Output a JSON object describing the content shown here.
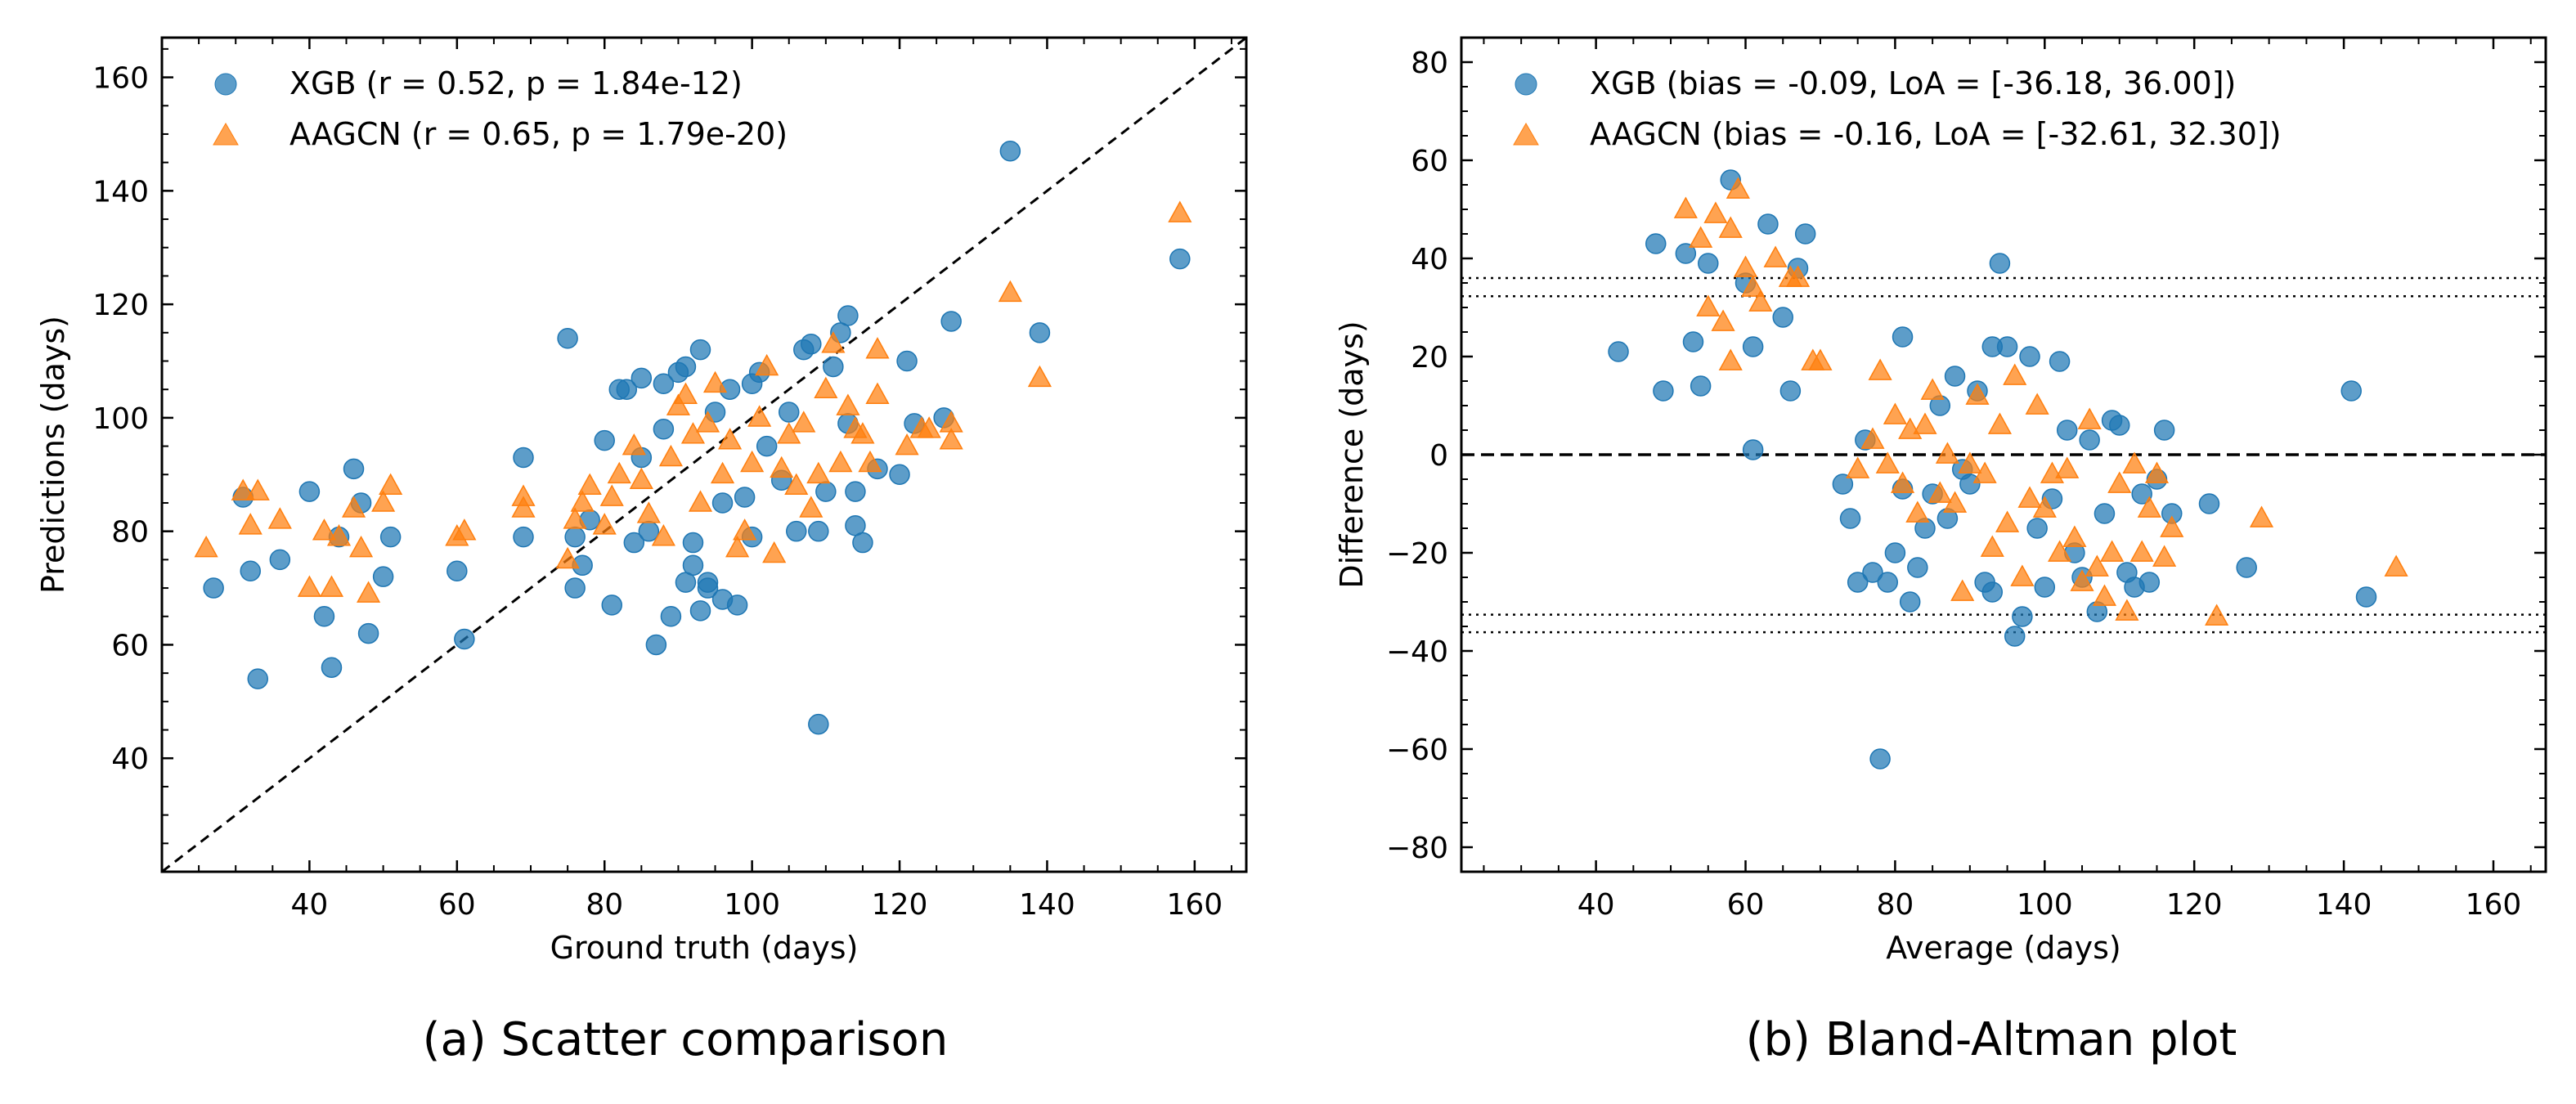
{
  "colors": {
    "xgb": "#1f77b4",
    "aagcn": "#ff7f0e",
    "axis": "#000000"
  },
  "figure": {
    "caption_a": "(a) Scatter comparison",
    "caption_b": "(b) Bland-Altman plot"
  },
  "chart_data": [
    {
      "type": "scatter",
      "xlabel": "Ground truth (days)",
      "ylabel": "Predictions (days)",
      "xlim": [
        20,
        167
      ],
      "ylim": [
        20,
        167
      ],
      "xticks": [
        "40",
        "60",
        "80",
        "100",
        "120",
        "140",
        "160"
      ],
      "yticks": [
        "40",
        "60",
        "80",
        "100",
        "120",
        "140",
        "160"
      ],
      "legend_position": "top-left",
      "reference_line": "identity (y = x), dashed",
      "series": [
        {
          "name": "XGB (r = 0.52, p = 1.84e-12)",
          "marker": "circle",
          "points": [
            [
              27,
              70
            ],
            [
              31,
              86
            ],
            [
              32,
              73
            ],
            [
              33,
              54
            ],
            [
              36,
              75
            ],
            [
              40,
              87
            ],
            [
              42,
              65
            ],
            [
              43,
              56
            ],
            [
              44,
              79
            ],
            [
              46,
              91
            ],
            [
              47,
              85
            ],
            [
              48,
              62
            ],
            [
              50,
              72
            ],
            [
              51,
              79
            ],
            [
              60,
              73
            ],
            [
              61,
              61
            ],
            [
              69,
              79
            ],
            [
              69,
              93
            ],
            [
              75,
              114
            ],
            [
              76,
              70
            ],
            [
              76,
              79
            ],
            [
              77,
              74
            ],
            [
              78,
              82
            ],
            [
              80,
              96
            ],
            [
              81,
              67
            ],
            [
              82,
              105
            ],
            [
              83,
              105
            ],
            [
              84,
              78
            ],
            [
              85,
              93
            ],
            [
              85,
              107
            ],
            [
              86,
              80
            ],
            [
              87,
              60
            ],
            [
              88,
              106
            ],
            [
              88,
              98
            ],
            [
              89,
              65
            ],
            [
              90,
              108
            ],
            [
              91,
              109
            ],
            [
              91,
              71
            ],
            [
              92,
              74
            ],
            [
              92,
              78
            ],
            [
              93,
              112
            ],
            [
              93,
              66
            ],
            [
              94,
              71
            ],
            [
              94,
              70
            ],
            [
              95,
              101
            ],
            [
              96,
              85
            ],
            [
              96,
              68
            ],
            [
              97,
              105
            ],
            [
              98,
              67
            ],
            [
              99,
              86
            ],
            [
              100,
              79
            ],
            [
              100,
              106
            ],
            [
              101,
              108
            ],
            [
              102,
              95
            ],
            [
              104,
              89
            ],
            [
              105,
              101
            ],
            [
              106,
              80
            ],
            [
              107,
              112
            ],
            [
              108,
              113
            ],
            [
              109,
              46
            ],
            [
              109,
              80
            ],
            [
              110,
              87
            ],
            [
              111,
              109
            ],
            [
              112,
              115
            ],
            [
              113,
              99
            ],
            [
              113,
              118
            ],
            [
              114,
              87
            ],
            [
              114,
              81
            ],
            [
              115,
              78
            ],
            [
              117,
              91
            ],
            [
              120,
              90
            ],
            [
              121,
              110
            ],
            [
              122,
              99
            ],
            [
              126,
              100
            ],
            [
              127,
              117
            ],
            [
              135,
              147
            ],
            [
              139,
              115
            ],
            [
              158,
              128
            ]
          ]
        },
        {
          "name": "AAGCN (r = 0.65, p = 1.79e-20)",
          "marker": "triangle",
          "points": [
            [
              26,
              77
            ],
            [
              31,
              87
            ],
            [
              32,
              81
            ],
            [
              33,
              87
            ],
            [
              36,
              82
            ],
            [
              40,
              70
            ],
            [
              42,
              80
            ],
            [
              43,
              70
            ],
            [
              44,
              79
            ],
            [
              46,
              84
            ],
            [
              47,
              77
            ],
            [
              48,
              69
            ],
            [
              50,
              85
            ],
            [
              51,
              88
            ],
            [
              60,
              79
            ],
            [
              61,
              80
            ],
            [
              69,
              84
            ],
            [
              69,
              86
            ],
            [
              75,
              75
            ],
            [
              76,
              82
            ],
            [
              77,
              85
            ],
            [
              78,
              88
            ],
            [
              80,
              81
            ],
            [
              81,
              86
            ],
            [
              82,
              90
            ],
            [
              84,
              95
            ],
            [
              85,
              89
            ],
            [
              86,
              83
            ],
            [
              88,
              79
            ],
            [
              89,
              93
            ],
            [
              90,
              102
            ],
            [
              91,
              104
            ],
            [
              92,
              97
            ],
            [
              93,
              85
            ],
            [
              94,
              99
            ],
            [
              95,
              106
            ],
            [
              96,
              90
            ],
            [
              97,
              96
            ],
            [
              98,
              77
            ],
            [
              99,
              80
            ],
            [
              100,
              92
            ],
            [
              101,
              100
            ],
            [
              102,
              109
            ],
            [
              103,
              76
            ],
            [
              104,
              91
            ],
            [
              105,
              97
            ],
            [
              106,
              88
            ],
            [
              107,
              99
            ],
            [
              108,
              84
            ],
            [
              109,
              90
            ],
            [
              110,
              105
            ],
            [
              111,
              113
            ],
            [
              112,
              92
            ],
            [
              113,
              102
            ],
            [
              114,
              98
            ],
            [
              115,
              97
            ],
            [
              116,
              92
            ],
            [
              117,
              104
            ],
            [
              117,
              112
            ],
            [
              121,
              95
            ],
            [
              123,
              98
            ],
            [
              124,
              98
            ],
            [
              127,
              96
            ],
            [
              127,
              99
            ],
            [
              135,
              122
            ],
            [
              139,
              107
            ],
            [
              158,
              136
            ]
          ]
        }
      ]
    },
    {
      "type": "scatter",
      "xlabel": "Average (days)",
      "ylabel": "Difference (days)",
      "xlim": [
        22,
        167
      ],
      "ylim": [
        -85,
        85
      ],
      "xticks": [
        "40",
        "60",
        "80",
        "100",
        "120",
        "140",
        "160"
      ],
      "yticks": [
        "−80",
        "−60",
        "−40",
        "−20",
        "0",
        "20",
        "40",
        "60",
        "80"
      ],
      "legend_position": "top-left",
      "bias_line": "y = 0, dashed",
      "limits_of_agreement": [
        -36.18,
        36.0,
        -32.61,
        32.3
      ],
      "series": [
        {
          "name": "XGB (bias = -0.09, LoA = [-36.18, 36.00])",
          "marker": "circle",
          "points": [
            [
              43,
              21
            ],
            [
              48,
              43
            ],
            [
              49,
              13
            ],
            [
              52,
              41
            ],
            [
              53,
              23
            ],
            [
              54,
              14
            ],
            [
              55,
              39
            ],
            [
              58,
              56
            ],
            [
              60,
              35
            ],
            [
              61,
              22
            ],
            [
              61,
              1
            ],
            [
              63,
              47
            ],
            [
              65,
              28
            ],
            [
              66,
              13
            ],
            [
              67,
              38
            ],
            [
              68,
              45
            ],
            [
              73,
              -6
            ],
            [
              74,
              -13
            ],
            [
              75,
              -26
            ],
            [
              76,
              3
            ],
            [
              77,
              -24
            ],
            [
              78,
              -62
            ],
            [
              79,
              -26
            ],
            [
              80,
              -20
            ],
            [
              81,
              -7
            ],
            [
              81,
              24
            ],
            [
              82,
              -30
            ],
            [
              83,
              -23
            ],
            [
              84,
              -15
            ],
            [
              85,
              -8
            ],
            [
              86,
              10
            ],
            [
              87,
              -13
            ],
            [
              88,
              16
            ],
            [
              89,
              -3
            ],
            [
              90,
              -6
            ],
            [
              91,
              13
            ],
            [
              92,
              -26
            ],
            [
              93,
              -28
            ],
            [
              93,
              22
            ],
            [
              94,
              39
            ],
            [
              95,
              22
            ],
            [
              96,
              -37
            ],
            [
              97,
              -33
            ],
            [
              98,
              20
            ],
            [
              99,
              -15
            ],
            [
              100,
              -27
            ],
            [
              101,
              -9
            ],
            [
              102,
              19
            ],
            [
              103,
              5
            ],
            [
              104,
              -20
            ],
            [
              105,
              -25
            ],
            [
              106,
              3
            ],
            [
              107,
              -32
            ],
            [
              108,
              -12
            ],
            [
              109,
              7
            ],
            [
              110,
              6
            ],
            [
              111,
              -24
            ],
            [
              112,
              -27
            ],
            [
              113,
              -8
            ],
            [
              114,
              -26
            ],
            [
              115,
              -5
            ],
            [
              116,
              5
            ],
            [
              117,
              -12
            ],
            [
              122,
              -10
            ],
            [
              127,
              -23
            ],
            [
              141,
              13
            ],
            [
              143,
              -29
            ]
          ]
        },
        {
          "name": "AAGCN (bias = -0.16, LoA = [-32.61, 32.30])",
          "marker": "triangle",
          "points": [
            [
              52,
              50
            ],
            [
              54,
              44
            ],
            [
              55,
              30
            ],
            [
              56,
              49
            ],
            [
              57,
              27
            ],
            [
              58,
              19
            ],
            [
              58,
              46
            ],
            [
              59,
              54
            ],
            [
              60,
              38
            ],
            [
              61,
              34
            ],
            [
              62,
              31
            ],
            [
              64,
              40
            ],
            [
              66,
              36
            ],
            [
              67,
              36
            ],
            [
              69,
              19
            ],
            [
              70,
              19
            ],
            [
              75,
              -3
            ],
            [
              77,
              3
            ],
            [
              78,
              17
            ],
            [
              79,
              -2
            ],
            [
              80,
              8
            ],
            [
              81,
              -6
            ],
            [
              82,
              5
            ],
            [
              83,
              -12
            ],
            [
              84,
              6
            ],
            [
              85,
              13
            ],
            [
              86,
              -8
            ],
            [
              87,
              0
            ],
            [
              88,
              -10
            ],
            [
              89,
              -28
            ],
            [
              90,
              -2
            ],
            [
              91,
              12
            ],
            [
              92,
              -4
            ],
            [
              93,
              -19
            ],
            [
              94,
              6
            ],
            [
              95,
              -14
            ],
            [
              96,
              16
            ],
            [
              97,
              -25
            ],
            [
              98,
              -9
            ],
            [
              99,
              10
            ],
            [
              100,
              -11
            ],
            [
              101,
              -4
            ],
            [
              102,
              -20
            ],
            [
              103,
              -3
            ],
            [
              104,
              -17
            ],
            [
              105,
              -26
            ],
            [
              106,
              7
            ],
            [
              107,
              -23
            ],
            [
              108,
              -29
            ],
            [
              109,
              -20
            ],
            [
              110,
              -6
            ],
            [
              111,
              -32
            ],
            [
              112,
              -2
            ],
            [
              113,
              -20
            ],
            [
              114,
              -11
            ],
            [
              115,
              -4
            ],
            [
              116,
              -21
            ],
            [
              117,
              -15
            ],
            [
              123,
              -33
            ],
            [
              129,
              -13
            ],
            [
              147,
              -23
            ]
          ]
        }
      ]
    }
  ]
}
